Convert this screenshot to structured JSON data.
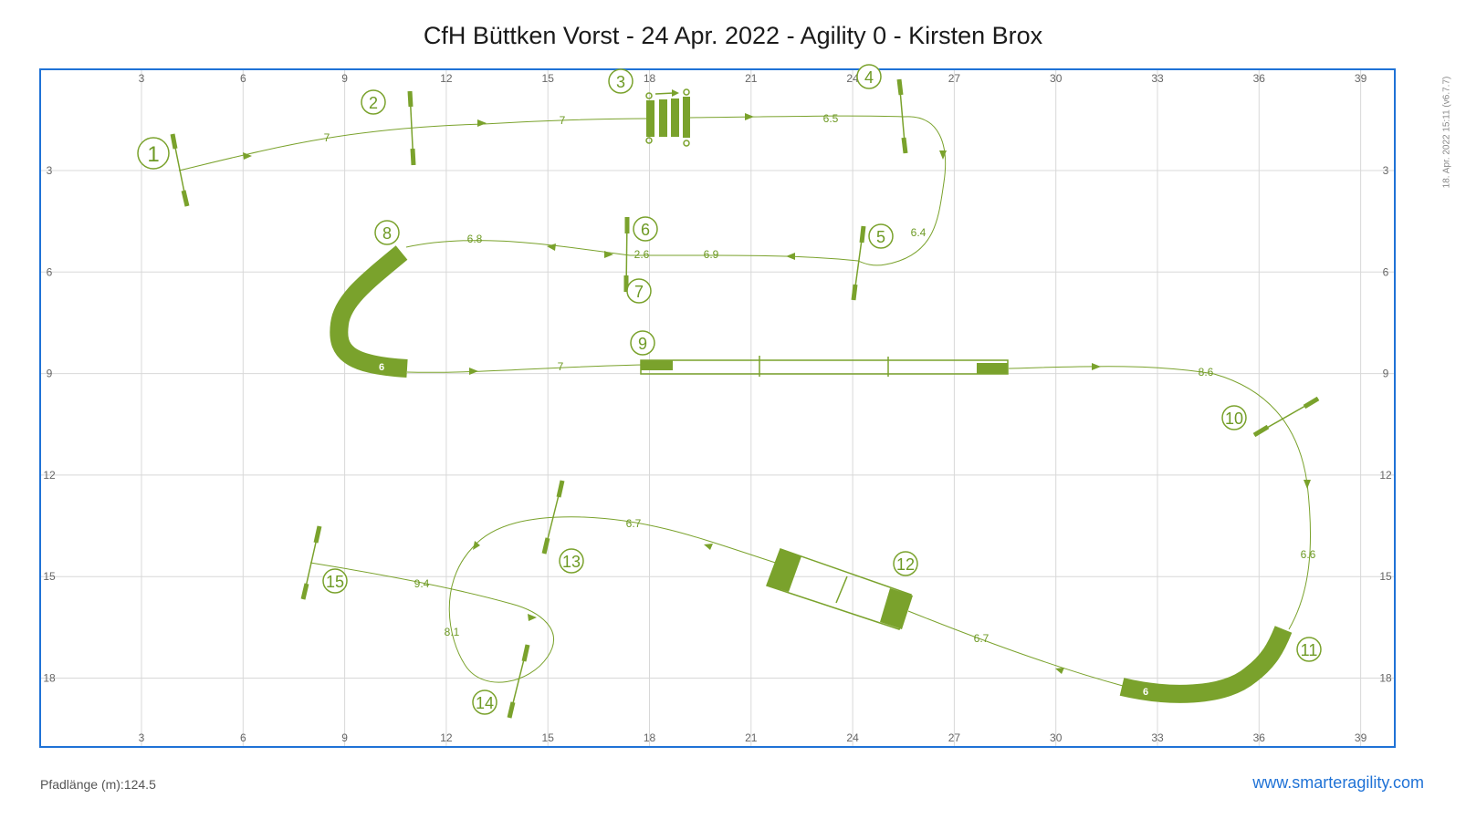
{
  "title": "CfH Büttken Vorst - 24 Apr. 2022 - Agility 0 - Kirsten Brox",
  "version_stamp": "18. Apr. 2022 15:11   (v6.7.7)",
  "path_length": "Pfadlänge (m):124.5",
  "site_link": "www.smarteragility.com",
  "colors": {
    "equipment": "#7aa22c",
    "path": "#7aa22c",
    "frame": "#1f72d6",
    "grid": "#d8d8d8"
  },
  "axes": {
    "x_ticks": [
      "3",
      "6",
      "9",
      "12",
      "15",
      "18",
      "21",
      "24",
      "27",
      "30",
      "33",
      "36",
      "39"
    ],
    "y_ticks": [
      "3",
      "6",
      "9",
      "12",
      "15",
      "18"
    ]
  },
  "obstacles": {
    "numbers": [
      "1",
      "2",
      "3",
      "4",
      "5",
      "6",
      "7",
      "8",
      "9",
      "10",
      "11",
      "12",
      "13",
      "14",
      "15"
    ],
    "tunnel_label_8": "6",
    "tunnel_label_11": "6"
  },
  "path_segments": [
    "7",
    "7",
    "6.5",
    "6.4",
    "6.9",
    "2.6",
    "6.8",
    "7",
    "8.6",
    "6.6",
    "6.7",
    "6.7",
    "8.1",
    "9.4"
  ]
}
